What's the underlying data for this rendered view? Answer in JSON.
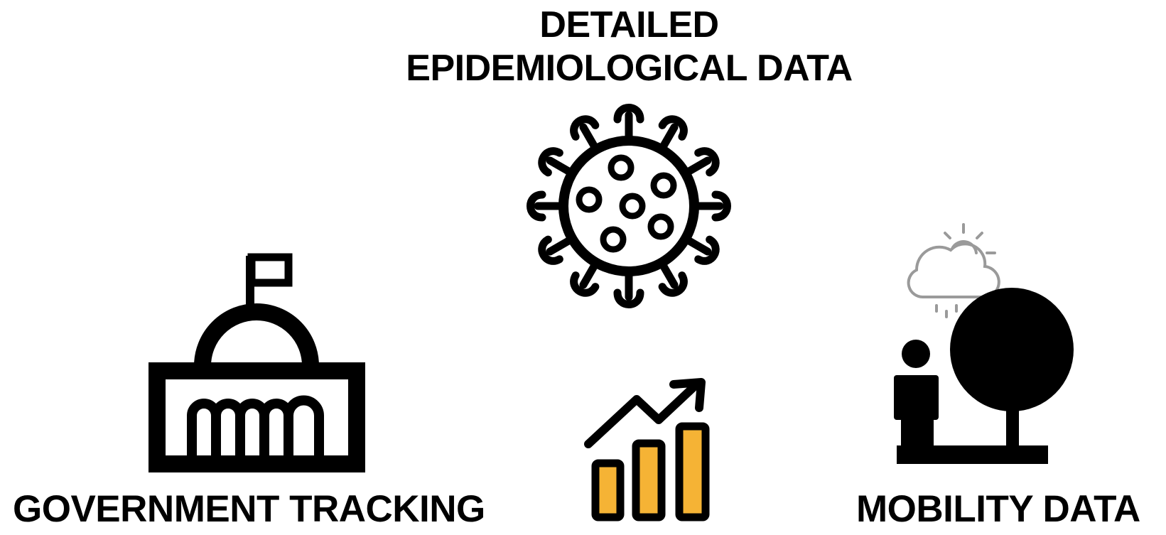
{
  "title": {
    "line1": "DETAILED",
    "line2": "EPIDEMIOLOGICAL DATA"
  },
  "labels": {
    "government": "GOVERNMENT TRACKING",
    "mobility": "MOBILITY DATA"
  },
  "icons": {
    "virus": "virus-icon",
    "government": "capitol-building-icon",
    "trend": "trend-chart-icon",
    "mobility": "person-tree-icon",
    "weather": "cloud-rain-sun-icon"
  },
  "colors": {
    "ink": "#000000",
    "bar_fill": "#f5b335",
    "weather_gray": "#9a9a9a"
  }
}
